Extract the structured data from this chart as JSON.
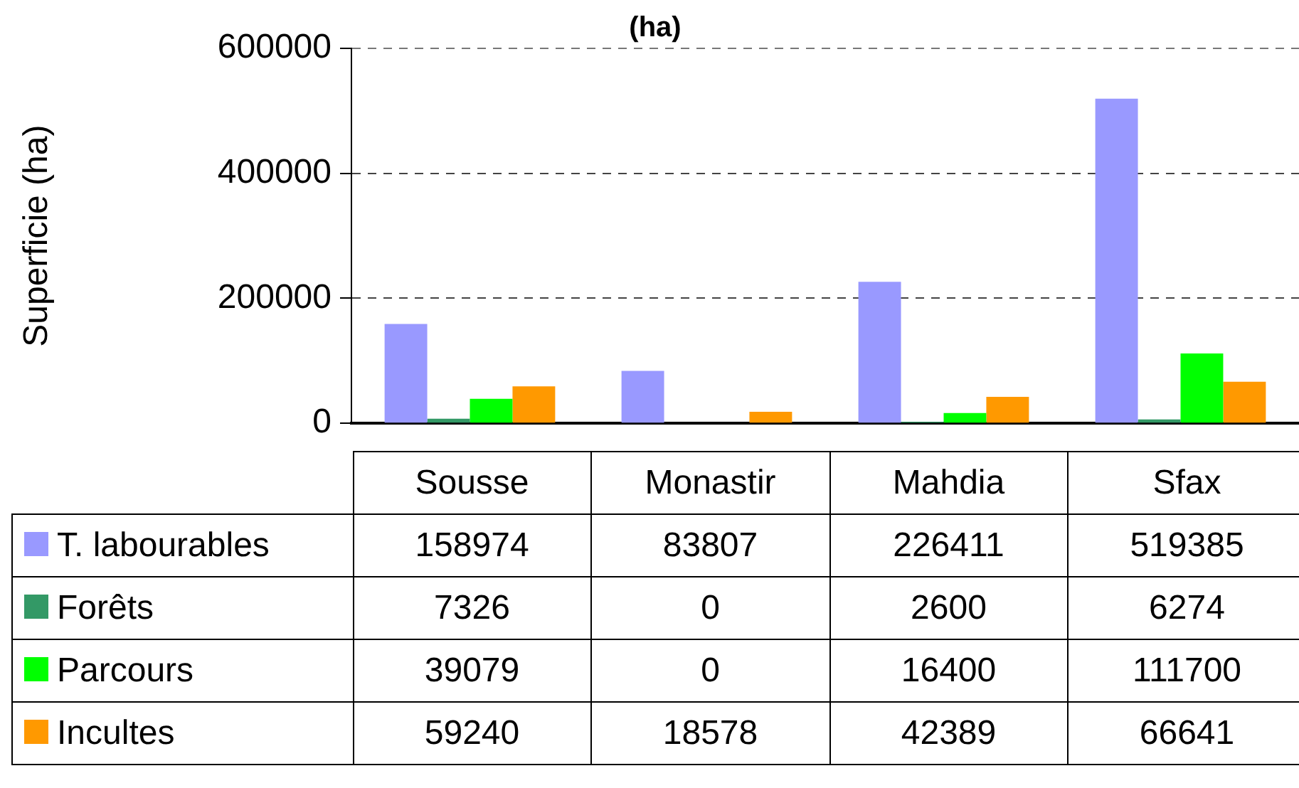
{
  "chart_data": {
    "type": "bar",
    "title": "(ha)",
    "ylabel": "Superficie (ha)",
    "categories": [
      "Sousse",
      "Monastir",
      "Mahdia",
      "Sfax"
    ],
    "series": [
      {
        "name": "T. labourables",
        "color": "#9999ff",
        "values": [
          158974,
          83807,
          226411,
          519385
        ]
      },
      {
        "name": "Forêts",
        "color": "#339966",
        "values": [
          7326,
          0,
          2600,
          6274
        ]
      },
      {
        "name": "Parcours",
        "color": "#00ff00",
        "values": [
          39079,
          0,
          16400,
          111700
        ]
      },
      {
        "name": "Incultes",
        "color": "#ff9900",
        "values": [
          59240,
          18578,
          42389,
          66641
        ]
      }
    ],
    "ylim": [
      0,
      600000
    ],
    "yticks": [
      0,
      200000,
      400000,
      600000
    ],
    "grid": "y",
    "legend": "bottom",
    "data_labels": true
  }
}
